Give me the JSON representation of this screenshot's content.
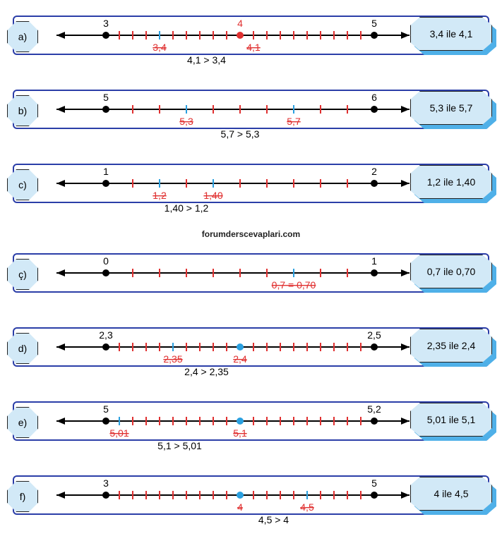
{
  "watermark": "forumderscevaplari.com",
  "colors": {
    "frame": "#2b3ea8",
    "hexFill": "#d2e9f7",
    "hexShadow": "#4fb0e8",
    "axis": "#000000",
    "tickRed": "#e03030",
    "tickBlue": "#2aa0e0",
    "dotBlack": "#000000",
    "dotRed": "#e03030",
    "dotBlue": "#2aa0e0",
    "redText": "#e03030",
    "blackText": "#000000"
  },
  "geom": {
    "lineY": 32,
    "axisX0": 10,
    "axisX1": 510,
    "leftEnd": 80,
    "rightEnd": 460,
    "tickH": 6,
    "dotR": 5
  },
  "rows": [
    {
      "id": "a",
      "label": "a)",
      "rightLabel": "3,4 ile 4,1",
      "endLabels": {
        "left": "3",
        "right": "5",
        "mid": "4"
      },
      "midDot": {
        "pos": 0.5,
        "color": "dotRed"
      },
      "ticks": {
        "n": 20,
        "colors": "allRed",
        "blueAt": [
          4
        ]
      },
      "marks": [
        {
          "pos": 0.2,
          "label": "3,4",
          "color": "redText",
          "strike": true
        },
        {
          "pos": 0.55,
          "label": "4,1",
          "color": "redText",
          "strike": true
        }
      ],
      "answer": "4,1 > 3,4"
    },
    {
      "id": "b",
      "label": "b)",
      "rightLabel": "5,3 ile 5,7",
      "endLabels": {
        "left": "5",
        "right": "6"
      },
      "ticks": {
        "n": 10,
        "colors": "allRed",
        "blueAt": [
          3,
          7
        ]
      },
      "marks": [
        {
          "pos": 0.3,
          "label": "5,3",
          "color": "redText",
          "strike": true
        },
        {
          "pos": 0.7,
          "label": "5,7",
          "color": "redText",
          "strike": true
        }
      ],
      "answer": "5,7 > 5,3"
    },
    {
      "id": "c",
      "label": "c)",
      "rightLabel": "1,2 ile 1,40",
      "endLabels": {
        "left": "1",
        "right": "2"
      },
      "ticks": {
        "n": 10,
        "colors": "allRed",
        "blueAt": [
          2,
          4
        ]
      },
      "marks": [
        {
          "pos": 0.2,
          "label": "1,2",
          "color": "redText",
          "strike": true
        },
        {
          "pos": 0.4,
          "label": "1,40",
          "color": "redText",
          "strike": true
        }
      ],
      "answer": "1,40 > 1,2"
    },
    {
      "id": "cc",
      "label": "ç)",
      "rightLabel": "0,7 ile 0,70",
      "endLabels": {
        "left": "0",
        "right": "1"
      },
      "ticks": {
        "n": 10,
        "colors": "allRed",
        "blueAt": [
          7
        ]
      },
      "marks": [
        {
          "pos": 0.7,
          "label": "0,7 = 0,70",
          "color": "redText",
          "strike": true
        }
      ],
      "answer": ""
    },
    {
      "id": "d",
      "label": "d)",
      "rightLabel": "2,35 ile 2,4",
      "endLabels": {
        "left": "2,3",
        "right": "2,5",
        "mid": ""
      },
      "midDot": {
        "pos": 0.5,
        "color": "dotBlue"
      },
      "ticks": {
        "n": 20,
        "colors": "allRed",
        "blueAt": [
          5
        ]
      },
      "marks": [
        {
          "pos": 0.25,
          "label": "2,35",
          "color": "redText",
          "strike": true
        },
        {
          "pos": 0.5,
          "label": "2,4",
          "color": "redText",
          "strike": true
        }
      ],
      "answer": "2,4 > 2,35"
    },
    {
      "id": "e",
      "label": "e)",
      "rightLabel": "5,01 ile 5,1",
      "endLabels": {
        "left": "5",
        "right": "5,2",
        "mid": ""
      },
      "midDot": {
        "pos": 0.5,
        "color": "dotBlue"
      },
      "ticks": {
        "n": 20,
        "colors": "allRed",
        "blueAt": [
          1
        ]
      },
      "marks": [
        {
          "pos": 0.05,
          "label": "5,01",
          "color": "redText",
          "strike": true
        },
        {
          "pos": 0.5,
          "label": "5,1",
          "color": "redText",
          "strike": true
        }
      ],
      "answer": "5,1 > 5,01"
    },
    {
      "id": "f",
      "label": "f)",
      "rightLabel": "4 ile 4,5",
      "endLabels": {
        "left": "3",
        "right": "5",
        "mid": ""
      },
      "midDot": {
        "pos": 0.5,
        "color": "dotBlue"
      },
      "ticks": {
        "n": 20,
        "colors": "allRed",
        "blueAt": [
          15
        ]
      },
      "marks": [
        {
          "pos": 0.5,
          "label": "4",
          "color": "redText",
          "strike": true
        },
        {
          "pos": 0.75,
          "label": "4,5",
          "color": "redText",
          "strike": true
        }
      ],
      "answer": "4,5 > 4"
    }
  ]
}
